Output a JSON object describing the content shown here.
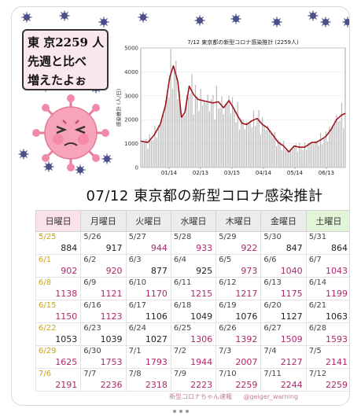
{
  "bubble": {
    "lines": [
      "東 京2259 人",
      "先週と比べ",
      "増えたよぉ"
    ]
  },
  "headline": "07/12 東京都の新型コロナ感染推計",
  "calendar": {
    "weekdays": [
      "日曜日",
      "月曜日",
      "火曜日",
      "水曜日",
      "木曜日",
      "金曜日",
      "土曜日"
    ],
    "weeks": [
      [
        {
          "d": "5/25",
          "v": "884",
          "up": false
        },
        {
          "d": "5/26",
          "v": "917",
          "up": false
        },
        {
          "d": "5/27",
          "v": "944",
          "up": true
        },
        {
          "d": "5/28",
          "v": "933",
          "up": true
        },
        {
          "d": "5/29",
          "v": "922",
          "up": true
        },
        {
          "d": "5/30",
          "v": "847",
          "up": false
        },
        {
          "d": "5/31",
          "v": "864",
          "up": false
        }
      ],
      [
        {
          "d": "6/1",
          "v": "902",
          "up": true
        },
        {
          "d": "6/2",
          "v": "920",
          "up": true
        },
        {
          "d": "6/3",
          "v": "877",
          "up": false
        },
        {
          "d": "6/4",
          "v": "925",
          "up": false
        },
        {
          "d": "6/5",
          "v": "973",
          "up": true
        },
        {
          "d": "6/6",
          "v": "1040",
          "up": true
        },
        {
          "d": "6/7",
          "v": "1043",
          "up": true
        }
      ],
      [
        {
          "d": "6/8",
          "v": "1138",
          "up": true
        },
        {
          "d": "6/9",
          "v": "1121",
          "up": true
        },
        {
          "d": "6/10",
          "v": "1170",
          "up": true
        },
        {
          "d": "6/11",
          "v": "1215",
          "up": true
        },
        {
          "d": "6/12",
          "v": "1217",
          "up": true
        },
        {
          "d": "6/13",
          "v": "1175",
          "up": true
        },
        {
          "d": "6/14",
          "v": "1199",
          "up": true
        }
      ],
      [
        {
          "d": "6/15",
          "v": "1150",
          "up": true
        },
        {
          "d": "6/16",
          "v": "1123",
          "up": true
        },
        {
          "d": "6/17",
          "v": "1106",
          "up": false
        },
        {
          "d": "6/18",
          "v": "1049",
          "up": false
        },
        {
          "d": "6/19",
          "v": "1076",
          "up": false
        },
        {
          "d": "6/20",
          "v": "1127",
          "up": false
        },
        {
          "d": "6/21",
          "v": "1063",
          "up": false
        }
      ],
      [
        {
          "d": "6/22",
          "v": "1053",
          "up": false
        },
        {
          "d": "6/23",
          "v": "1039",
          "up": false
        },
        {
          "d": "6/24",
          "v": "1027",
          "up": false
        },
        {
          "d": "6/25",
          "v": "1306",
          "up": true
        },
        {
          "d": "6/26",
          "v": "1392",
          "up": true
        },
        {
          "d": "6/27",
          "v": "1509",
          "up": true
        },
        {
          "d": "6/28",
          "v": "1593",
          "up": true
        }
      ],
      [
        {
          "d": "6/29",
          "v": "1625",
          "up": true
        },
        {
          "d": "6/30",
          "v": "1753",
          "up": true
        },
        {
          "d": "7/1",
          "v": "1793",
          "up": true
        },
        {
          "d": "7/2",
          "v": "1944",
          "up": true
        },
        {
          "d": "7/3",
          "v": "2007",
          "up": true
        },
        {
          "d": "7/4",
          "v": "2127",
          "up": true
        },
        {
          "d": "7/5",
          "v": "2141",
          "up": true
        }
      ],
      [
        {
          "d": "7/6",
          "v": "2191",
          "up": true
        },
        {
          "d": "7/7",
          "v": "2236",
          "up": true
        },
        {
          "d": "7/8",
          "v": "2318",
          "up": true
        },
        {
          "d": "7/9",
          "v": "2223",
          "up": true
        },
        {
          "d": "7/10",
          "v": "2259",
          "up": true
        },
        {
          "d": "7/11",
          "v": "2244",
          "up": true
        },
        {
          "d": "7/12",
          "v": "2259",
          "up": true
        }
      ]
    ]
  },
  "footer": {
    "brand": "新型コロナちゃん速報",
    "handle": "@geiger_warning"
  },
  "chart_data": {
    "type": "line",
    "title": "7/12 東京都の新型コロナ感染推計 (2259人)",
    "ylabel": "感染推計 (人/日)",
    "ylim": [
      0,
      5000
    ],
    "yticks": [
      "0",
      "1000",
      "2000",
      "3000",
      "4000",
      "5000"
    ],
    "xticks": [
      "01/14",
      "02/13",
      "03/15",
      "04/14",
      "05/14",
      "06/13"
    ],
    "grid": true,
    "line_color": "#a0141e",
    "bar_color": "#b9b9b9",
    "x": [
      0,
      8,
      15,
      22,
      28,
      33,
      37,
      42,
      46,
      50,
      55,
      60,
      65,
      70,
      76,
      82,
      88,
      94,
      100,
      105,
      110,
      115,
      120,
      126,
      132,
      138,
      144,
      150,
      156,
      162,
      168,
      174,
      180,
      186,
      190,
      194,
      199,
      204,
      210,
      216,
      222,
      228,
      232
    ],
    "values": [
      1100,
      1050,
      1350,
      1800,
      2600,
      3800,
      4250,
      3600,
      2100,
      2300,
      3400,
      3050,
      2850,
      2800,
      2750,
      2700,
      2750,
      2500,
      2800,
      2500,
      2150,
      1850,
      1800,
      1950,
      2050,
      1800,
      1650,
      1350,
      1050,
      900,
      650,
      900,
      850,
      850,
      950,
      1050,
      1050,
      1150,
      1300,
      1600,
      2000,
      2200,
      2259
    ]
  },
  "colors": {
    "accent": "#b0286a",
    "sunday_header": "#fbe2ea",
    "saturday_header": "#e3f5d9",
    "virus": "#4a4f8a"
  }
}
